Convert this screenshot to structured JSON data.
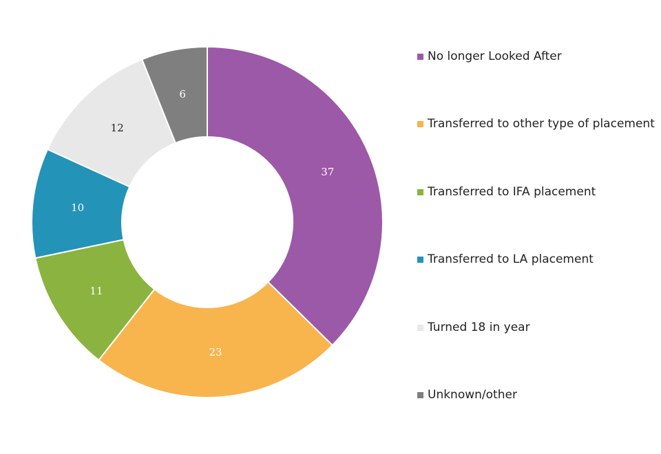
{
  "chart_data": {
    "type": "pie",
    "donut": true,
    "legend_position": "right",
    "categories": [
      "No longer Looked After",
      "Transferred to other type of placement",
      "Transferred to IFA placement",
      "Transferred to LA placement",
      "Turned 18 in year",
      "Unknown/other"
    ],
    "values": [
      37,
      23,
      11,
      10,
      12,
      6
    ],
    "colors": [
      "#9b59a8",
      "#f8b44d",
      "#8ab43f",
      "#2393b8",
      "#e8e8e8",
      "#7f7f7f"
    ],
    "label_colors": [
      "#ffffff",
      "#ffffff",
      "#ffffff",
      "#ffffff",
      "#222222",
      "#ffffff"
    ]
  }
}
